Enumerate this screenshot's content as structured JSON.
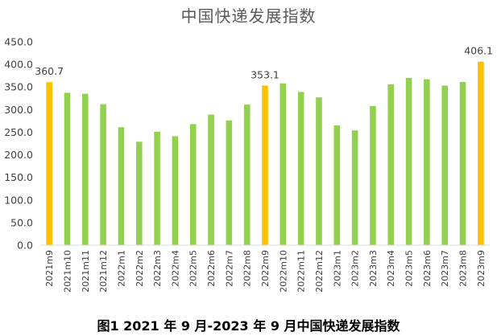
{
  "title": "中国快递发展指数",
  "caption": "图1 2021 年 9 月-2023 年 9 月中国快递发展指数",
  "colors": {
    "green": "#92D050",
    "highlight": "#FFC000",
    "axis": "#D9D9D9",
    "text": "#404040"
  },
  "chart_data": {
    "type": "bar",
    "title": "中国快递发展指数",
    "xlabel": "",
    "ylabel": "",
    "ylim": [
      0,
      450
    ],
    "yticks": [
      "0.0",
      "50.0",
      "100.0",
      "150.0",
      "200.0",
      "250.0",
      "300.0",
      "350.0",
      "400.0",
      "450.0"
    ],
    "grid": false,
    "categories": [
      "2021m9",
      "2021m10",
      "2021m11",
      "2021m12",
      "2022m1",
      "2022m2",
      "2022m3",
      "2022m4",
      "2022m5",
      "2022m6",
      "2022m7",
      "2022m8",
      "2022m9",
      "2022m10",
      "2022m11",
      "2022m12",
      "2023m1",
      "2023m2",
      "2023m3",
      "2023m4",
      "2023m5",
      "2023m6",
      "2023m7",
      "2023m8",
      "2023m9"
    ],
    "values": [
      360.7,
      337,
      335,
      312,
      261,
      229,
      251,
      241,
      268,
      289,
      276,
      311,
      353.1,
      358,
      339,
      327,
      265,
      254,
      308,
      356,
      370,
      367,
      353,
      361,
      406.1
    ],
    "highlighted": [
      0,
      12,
      24
    ],
    "data_labels": [
      {
        "index": 0,
        "text": "360.7"
      },
      {
        "index": 12,
        "text": "353.1"
      },
      {
        "index": 24,
        "text": "406.1"
      }
    ]
  }
}
